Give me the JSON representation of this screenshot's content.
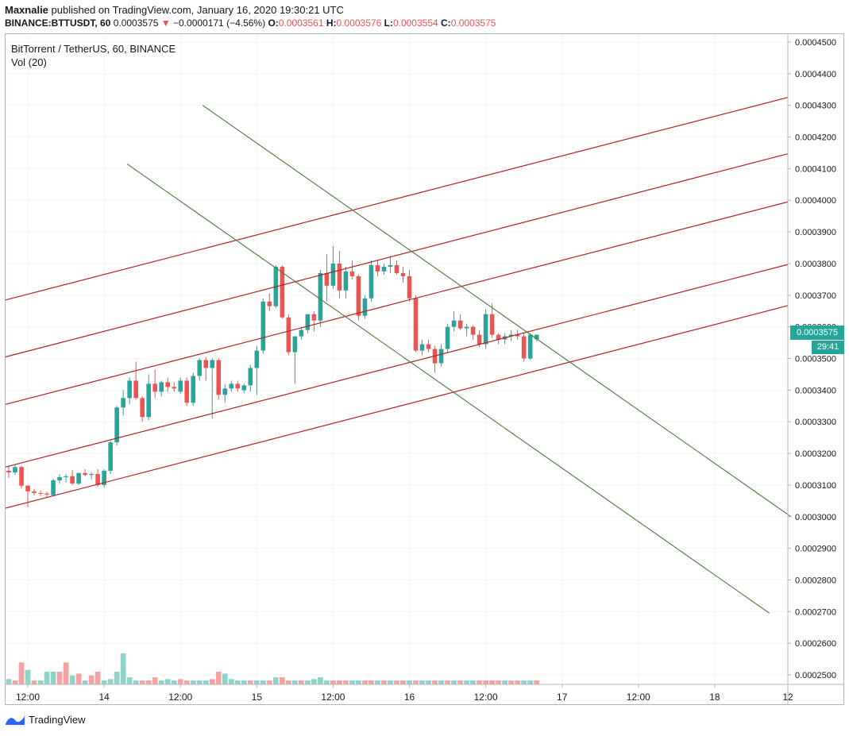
{
  "header": {
    "publisher": "Maxnalie",
    "published_text": "published on TradingView.com, January 16, 2020 19:30:21 UTC",
    "symbol": "BINANCE:BTTUSDT, 60",
    "last": "0.0003575",
    "change": "−0.0000171 (−4.56%)",
    "o_label": "O:",
    "o_value": "0.0003561",
    "h_label": "H:",
    "h_value": "0.0003576",
    "l_label": "L:",
    "l_value": "0.0003554",
    "c_label": "C:",
    "c_value": "0.0003575",
    "down_arrow": "▼"
  },
  "legend": {
    "title": "BitTorrent / TetherUS, 60, BINANCE",
    "volume": "Vol (20)"
  },
  "price_tag": "0.0003575",
  "timer_tag": "29:41",
  "footer": {
    "brand": "TradingView",
    "logo_icon": "tradingview-logo-icon"
  },
  "colors": {
    "up": "#26a69a",
    "down": "#ef5350",
    "vol_up": "#8fd2c9",
    "vol_down": "#f3a3a1",
    "channel": "#b22222",
    "trend": "#4a7a3a"
  },
  "chart_data": {
    "type": "candlestick",
    "symbol": "BitTorrent / TetherUS, 60, BINANCE",
    "y_ticks": [
      "0.0004500",
      "0.0004400",
      "0.0004300",
      "0.0004200",
      "0.0004100",
      "0.0004000",
      "0.0003900",
      "0.0003800",
      "0.0003700",
      "0.0003600",
      "0.0003500",
      "0.0003400",
      "0.0003300",
      "0.0003200",
      "0.0003100",
      "0.0003000",
      "0.0002900",
      "0.0002800",
      "0.0002700",
      "0.0002600",
      "0.0002500"
    ],
    "ylim": [
      0.000247,
      0.000452
    ],
    "x_ticks": [
      {
        "label": "12:00",
        "index": 3
      },
      {
        "label": "14",
        "index": 15
      },
      {
        "label": "12:00",
        "index": 27
      },
      {
        "label": "15",
        "index": 39
      },
      {
        "label": "12:00",
        "index": 51
      },
      {
        "label": "16",
        "index": 63
      },
      {
        "label": "12:00",
        "index": 75
      },
      {
        "label": "17",
        "index": 87
      },
      {
        "label": "12:00",
        "index": 99
      },
      {
        "label": "18",
        "index": 111
      },
      {
        "label": "12",
        "index": 122.5
      }
    ],
    "bars_visible": 123,
    "candles": [
      [
        0.0003145,
        0.0003158,
        0.0003123,
        0.000314
      ],
      [
        0.000314,
        0.0003165,
        0.0003132,
        0.0003157
      ],
      [
        0.0003157,
        0.000316,
        0.000309,
        0.0003098
      ],
      [
        0.0003098,
        0.00031,
        0.000303,
        0.000308
      ],
      [
        0.000308,
        0.0003088,
        0.0003068,
        0.0003075
      ],
      [
        0.0003075,
        0.0003082,
        0.0003065,
        0.0003073
      ],
      [
        0.0003073,
        0.0003079,
        0.000306,
        0.000307
      ],
      [
        0.0003068,
        0.000312,
        0.0003065,
        0.0003115
      ],
      [
        0.0003115,
        0.0003135,
        0.0003105,
        0.0003125
      ],
      [
        0.0003125,
        0.0003135,
        0.0003108,
        0.0003128
      ],
      [
        0.0003128,
        0.0003148,
        0.00031,
        0.0003105
      ],
      [
        0.0003105,
        0.000314,
        0.00031,
        0.0003138
      ],
      [
        0.0003138,
        0.000315,
        0.0003128,
        0.0003132
      ],
      [
        0.0003132,
        0.000314,
        0.0003118,
        0.0003135
      ],
      [
        0.0003135,
        0.000315,
        0.0003095,
        0.00031
      ],
      [
        0.00031,
        0.000315,
        0.0003092,
        0.0003145
      ],
      [
        0.0003145,
        0.000324,
        0.0003135,
        0.0003235
      ],
      [
        0.0003235,
        0.000335,
        0.0003225,
        0.0003345
      ],
      [
        0.0003345,
        0.00034,
        0.000332,
        0.0003375
      ],
      [
        0.0003375,
        0.000344,
        0.0003355,
        0.000343
      ],
      [
        0.000343,
        0.000349,
        0.000337,
        0.0003375
      ],
      [
        0.0003375,
        0.000338,
        0.00033,
        0.0003315
      ],
      [
        0.0003315,
        0.000345,
        0.0003305,
        0.000342
      ],
      [
        0.000342,
        0.0003465,
        0.0003375,
        0.0003395
      ],
      [
        0.0003395,
        0.000343,
        0.000338,
        0.0003425
      ],
      [
        0.0003425,
        0.000344,
        0.0003395,
        0.000341
      ],
      [
        0.000341,
        0.0003425,
        0.0003395,
        0.0003405
      ],
      [
        0.0003395,
        0.000344,
        0.0003388,
        0.000343
      ],
      [
        0.000343,
        0.000344,
        0.000335,
        0.000336
      ],
      [
        0.000336,
        0.0003455,
        0.000335,
        0.0003445
      ],
      [
        0.0003445,
        0.00035,
        0.000343,
        0.0003495
      ],
      [
        0.0003495,
        0.0003505,
        0.000343,
        0.000347
      ],
      [
        0.000347,
        0.00035,
        0.000331,
        0.0003495
      ],
      [
        0.0003495,
        0.00035,
        0.000337,
        0.0003385
      ],
      [
        0.0003385,
        0.000342,
        0.000336,
        0.0003405
      ],
      [
        0.0003405,
        0.000343,
        0.0003395,
        0.000342
      ],
      [
        0.000342,
        0.000343,
        0.0003395,
        0.0003405
      ],
      [
        0.00034,
        0.000342,
        0.000339,
        0.0003415
      ],
      [
        0.0003415,
        0.000348,
        0.0003395,
        0.000347
      ],
      [
        0.000347,
        0.000354,
        0.0003385,
        0.0003525
      ],
      [
        0.0003525,
        0.000369,
        0.0003515,
        0.000368
      ],
      [
        0.000368,
        0.0003705,
        0.000365,
        0.0003665
      ],
      [
        0.0003665,
        0.0003795,
        0.000366,
        0.000379
      ],
      [
        0.000379,
        0.0003795,
        0.0003625,
        0.000363
      ],
      [
        0.000363,
        0.000364,
        0.000351,
        0.000352
      ],
      [
        0.000352,
        0.000357,
        0.000342,
        0.000357
      ],
      [
        0.000357,
        0.00036,
        0.000356,
        0.000359
      ],
      [
        0.000359,
        0.000364,
        0.000358,
        0.000364
      ],
      [
        0.000364,
        0.000365,
        0.0003585,
        0.000362
      ],
      [
        0.000362,
        0.000378,
        0.00036,
        0.000377
      ],
      [
        0.000377,
        0.000383,
        0.000368,
        0.000373
      ],
      [
        0.000373,
        0.0003855,
        0.000372,
        0.00038
      ],
      [
        0.00038,
        0.000384,
        0.000369,
        0.0003715
      ],
      [
        0.0003715,
        0.000379,
        0.000369,
        0.0003775
      ],
      [
        0.0003775,
        0.000381,
        0.000375,
        0.000376
      ],
      [
        0.000376,
        0.0003765,
        0.000362,
        0.0003635
      ],
      [
        0.0003635,
        0.00037,
        0.0003625,
        0.000369
      ],
      [
        0.000369,
        0.000381,
        0.000368,
        0.0003795
      ],
      [
        0.0003795,
        0.000381,
        0.000376,
        0.0003775
      ],
      [
        0.0003775,
        0.00038,
        0.0003765,
        0.000379
      ],
      [
        0.000379,
        0.0003825,
        0.000377,
        0.0003795
      ],
      [
        0.0003795,
        0.000381,
        0.0003765,
        0.000377
      ],
      [
        0.000377,
        0.000379,
        0.000374,
        0.000376
      ],
      [
        0.000376,
        0.000378,
        0.000368,
        0.000369
      ],
      [
        0.000369,
        0.00037,
        0.000352,
        0.0003525
      ],
      [
        0.0003525,
        0.000356,
        0.000351,
        0.0003545
      ],
      [
        0.0003545,
        0.000356,
        0.000352,
        0.000353
      ],
      [
        0.000353,
        0.000354,
        0.0003455,
        0.0003485
      ],
      [
        0.0003485,
        0.0003545,
        0.0003475,
        0.000353
      ],
      [
        0.000353,
        0.000361,
        0.000352,
        0.00036
      ],
      [
        0.00036,
        0.000365,
        0.0003585,
        0.000362
      ],
      [
        0.000362,
        0.000364,
        0.000359,
        0.0003595
      ],
      [
        0.0003595,
        0.000361,
        0.000357,
        0.00036
      ],
      [
        0.00036,
        0.0003605,
        0.000356,
        0.0003575
      ],
      [
        0.0003575,
        0.000359,
        0.0003535,
        0.0003545
      ],
      [
        0.0003545,
        0.0003655,
        0.000353,
        0.000364
      ],
      [
        0.000364,
        0.0003675,
        0.0003565,
        0.0003575
      ],
      [
        0.0003575,
        0.000358,
        0.0003545,
        0.000356
      ],
      [
        0.000356,
        0.000358,
        0.0003545,
        0.000357
      ],
      [
        0.000357,
        0.000359,
        0.0003555,
        0.0003575
      ],
      [
        0.0003575,
        0.000359,
        0.000356,
        0.000357
      ],
      [
        0.000357,
        0.000358,
        0.000349,
        0.00035
      ],
      [
        0.00035,
        0.000358,
        0.0003495,
        0.0003575
      ],
      [
        0.0003561,
        0.0003576,
        0.0003554,
        0.0003575
      ]
    ],
    "volume": [
      {
        "v": 74,
        "up": true
      },
      {
        "v": 73,
        "up": false
      },
      {
        "v": 83,
        "up": false
      },
      {
        "v": 79,
        "up": true
      },
      {
        "v": 70,
        "up": false
      },
      {
        "v": 68,
        "up": true
      },
      {
        "v": 78,
        "up": true
      },
      {
        "v": 78,
        "up": true
      },
      {
        "v": 78,
        "up": false
      },
      {
        "v": 83,
        "up": false
      },
      {
        "v": 76,
        "up": true
      },
      {
        "v": 77,
        "up": false
      },
      {
        "v": 72,
        "up": true
      },
      {
        "v": 76,
        "up": false
      },
      {
        "v": 78,
        "up": false
      },
      {
        "v": 73,
        "up": true
      },
      {
        "v": 74,
        "up": true
      },
      {
        "v": 78,
        "up": true
      },
      {
        "v": 88,
        "up": true
      },
      {
        "v": 75,
        "up": true
      },
      {
        "v": 71,
        "up": true
      },
      {
        "v": 70,
        "up": false
      },
      {
        "v": 73,
        "up": false
      },
      {
        "v": 75,
        "up": false
      },
      {
        "v": 73,
        "up": true
      },
      {
        "v": 74,
        "up": true
      },
      {
        "v": 73,
        "up": true
      },
      {
        "v": 74,
        "up": false
      },
      {
        "v": 71,
        "up": false
      },
      {
        "v": 73,
        "up": true
      },
      {
        "v": 72,
        "up": true
      },
      {
        "v": 70,
        "up": true
      },
      {
        "v": 74,
        "up": false
      },
      {
        "v": 78,
        "up": false
      },
      {
        "v": 77,
        "up": true
      },
      {
        "v": 74,
        "up": true
      },
      {
        "v": 73,
        "up": true
      },
      {
        "v": 72,
        "up": true
      },
      {
        "v": 72,
        "up": false
      },
      {
        "v": 73,
        "up": true
      },
      {
        "v": 72,
        "up": true
      },
      {
        "v": 72,
        "up": false
      },
      {
        "v": 75,
        "up": true
      },
      {
        "v": 75,
        "up": false
      },
      {
        "v": 73,
        "up": false
      },
      {
        "v": 73,
        "up": true
      },
      {
        "v": 72,
        "up": false
      },
      {
        "v": 71,
        "up": true
      },
      {
        "v": 74,
        "up": true
      },
      {
        "v": 75,
        "up": true
      },
      {
        "v": 72,
        "up": true
      },
      {
        "v": 70,
        "up": false
      },
      {
        "v": 73,
        "up": false
      },
      {
        "v": 71,
        "up": false
      },
      {
        "v": 70,
        "up": true
      },
      {
        "v": 72,
        "up": true
      },
      {
        "v": 71,
        "up": false
      },
      {
        "v": 72,
        "up": false
      },
      {
        "v": 72,
        "up": true
      },
      {
        "v": 71,
        "up": false
      },
      {
        "v": 71,
        "up": true
      },
      {
        "v": 72,
        "up": false
      },
      {
        "v": 73,
        "up": false
      },
      {
        "v": 72,
        "up": true
      },
      {
        "v": 72,
        "up": false
      },
      {
        "v": 71,
        "up": true
      },
      {
        "v": 71,
        "up": true
      },
      {
        "v": 71,
        "up": false
      },
      {
        "v": 73,
        "up": true
      },
      {
        "v": 73,
        "up": false
      },
      {
        "v": 72,
        "up": true
      },
      {
        "v": 72,
        "up": false
      },
      {
        "v": 73,
        "up": true
      },
      {
        "v": 72,
        "up": true
      },
      {
        "v": 72,
        "up": false
      },
      {
        "v": 70,
        "up": false
      },
      {
        "v": 71,
        "up": false
      },
      {
        "v": 71,
        "up": false
      },
      {
        "v": 71,
        "up": true
      },
      {
        "v": 71,
        "up": false
      },
      {
        "v": 70,
        "up": false
      },
      {
        "v": 70,
        "up": true
      },
      {
        "v": 70,
        "up": true
      },
      {
        "v": 70,
        "up": false
      }
    ],
    "drawings": {
      "channel_lines": [
        {
          "from": [
            0,
            0.0003685
          ],
          "to": [
            123,
            0.0004325
          ]
        },
        {
          "from": [
            0,
            0.0003505
          ],
          "to": [
            123,
            0.0004147
          ]
        },
        {
          "from": [
            0,
            0.0003355
          ],
          "to": [
            123,
            0.0003995
          ]
        },
        {
          "from": [
            0,
            0.0003157
          ],
          "to": [
            123,
            0.0003797
          ]
        },
        {
          "from": [
            0,
            0.0003027
          ],
          "to": [
            123,
            0.0003667
          ]
        }
      ],
      "trend_lines": [
        {
          "from": [
            30.5,
            0.00043
          ],
          "to": [
            123,
            0.0003
          ]
        },
        {
          "from": [
            18.6,
            0.0004115
          ],
          "to": [
            119.6,
            0.0002695
          ]
        }
      ]
    }
  }
}
